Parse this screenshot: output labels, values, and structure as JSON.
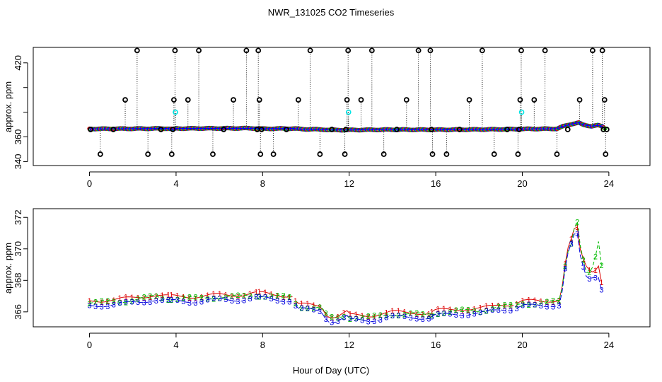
{
  "title": "NWR_131025  CO2 Timeseries",
  "xlabel": "Hour of Day (UTC)",
  "colors": {
    "series1": "#dd0000",
    "series2": "#00bb00",
    "series3": "#0000dd",
    "flagged_black": "#000000",
    "flagged_cyan": "#00e5e5",
    "series_line": "#0000ff"
  },
  "chart_data": [
    {
      "id": "top",
      "type": "scatter",
      "ylabel": "approx. ppm",
      "xlim": [
        -2.6,
        25.9
      ],
      "ylim": [
        336.8,
        432.5
      ],
      "xticks": [
        0,
        4,
        8,
        12,
        16,
        20,
        24
      ],
      "yticks": [
        340,
        360,
        380,
        400,
        420
      ],
      "ytick_labels": [
        "340",
        "360",
        "",
        "",
        "420"
      ],
      "baseline": [
        [
          0,
          366.5
        ],
        [
          3.6,
          366.8
        ],
        [
          3.9,
          366.2
        ],
        [
          4.0,
          366.8
        ],
        [
          7.5,
          367
        ],
        [
          8,
          366.6
        ],
        [
          9.4,
          366.8
        ],
        [
          9.8,
          366.3
        ],
        [
          10.8,
          366
        ],
        [
          11.1,
          365.6
        ],
        [
          12,
          365.6
        ],
        [
          14,
          365.9
        ],
        [
          16,
          365.8
        ],
        [
          18,
          366
        ],
        [
          19.8,
          366.3
        ],
        [
          20,
          366.4
        ],
        [
          21.6,
          366.6
        ],
        [
          21.9,
          368.6
        ],
        [
          22.3,
          370.5
        ],
        [
          22.6,
          371.5
        ],
        [
          22.8,
          369.8
        ],
        [
          23.2,
          368.7
        ],
        [
          23.5,
          369.4
        ],
        [
          23.7,
          368.4
        ],
        [
          23.85,
          366.5
        ]
      ],
      "flagged_black": [
        [
          0.05,
          366
        ],
        [
          0.5,
          346
        ],
        [
          1.1,
          366
        ],
        [
          1.65,
          390
        ],
        [
          2.2,
          430
        ],
        [
          2.7,
          346
        ],
        [
          3.3,
          366
        ],
        [
          3.8,
          346
        ],
        [
          3.85,
          366
        ],
        [
          3.9,
          390
        ],
        [
          3.95,
          430
        ],
        [
          4.55,
          390
        ],
        [
          5.05,
          430
        ],
        [
          5.7,
          346
        ],
        [
          6.2,
          366
        ],
        [
          6.65,
          390
        ],
        [
          7.25,
          430
        ],
        [
          7.75,
          366
        ],
        [
          7.8,
          430
        ],
        [
          7.85,
          390
        ],
        [
          7.9,
          346
        ],
        [
          7.95,
          366
        ],
        [
          8.5,
          346
        ],
        [
          9.1,
          366
        ],
        [
          9.65,
          390
        ],
        [
          10.2,
          430
        ],
        [
          10.65,
          346
        ],
        [
          11.2,
          366
        ],
        [
          11.8,
          346
        ],
        [
          11.85,
          366
        ],
        [
          11.9,
          390
        ],
        [
          11.95,
          430
        ],
        [
          12.55,
          390
        ],
        [
          13.05,
          430
        ],
        [
          13.6,
          346
        ],
        [
          14.2,
          366
        ],
        [
          14.65,
          390
        ],
        [
          15.2,
          430
        ],
        [
          15.75,
          430
        ],
        [
          15.8,
          366
        ],
        [
          15.85,
          346
        ],
        [
          16.5,
          346
        ],
        [
          17.1,
          366
        ],
        [
          17.55,
          390
        ],
        [
          18.15,
          430
        ],
        [
          18.7,
          346
        ],
        [
          19.3,
          366
        ],
        [
          19.8,
          346
        ],
        [
          19.85,
          366
        ],
        [
          19.9,
          390
        ],
        [
          19.95,
          430
        ],
        [
          20.55,
          390
        ],
        [
          21.05,
          430
        ],
        [
          21.6,
          346
        ],
        [
          22.1,
          366
        ],
        [
          22.65,
          390
        ],
        [
          23.25,
          430
        ],
        [
          23.7,
          430
        ],
        [
          23.75,
          366
        ],
        [
          23.8,
          390
        ],
        [
          23.85,
          346
        ],
        [
          23.9,
          366
        ]
      ],
      "flagged_cyan": [
        [
          3.97,
          380
        ],
        [
          11.97,
          380
        ],
        [
          19.97,
          380
        ]
      ]
    },
    {
      "id": "bottom",
      "type": "line",
      "ylabel": "approx. ppm",
      "xlim": [
        -2.6,
        25.9
      ],
      "ylim": [
        365.05,
        372.55
      ],
      "xticks": [
        0,
        4,
        8,
        12,
        16,
        20,
        24
      ],
      "yticks": [
        366,
        368,
        370,
        372
      ],
      "gaps": [
        3.7,
        7.7,
        9.5,
        15.8,
        19.7
      ],
      "series": [
        {
          "name": "1",
          "offset": 0.18,
          "points": [
            [
              0,
              366.5
            ],
            [
              1.2,
              366.6
            ],
            [
              2,
              366.7
            ],
            [
              3,
              366.9
            ],
            [
              3.6,
              366.8
            ],
            [
              4,
              366.8
            ],
            [
              5,
              366.8
            ],
            [
              6,
              366.9
            ],
            [
              7,
              366.9
            ],
            [
              7.6,
              367
            ],
            [
              8,
              367
            ],
            [
              8.8,
              366.9
            ],
            [
              9.4,
              366.8
            ],
            [
              9.6,
              366.3
            ],
            [
              10.7,
              366.2
            ],
            [
              11,
              365.6
            ],
            [
              11.4,
              365.5
            ],
            [
              11.9,
              365.8
            ],
            [
              12,
              365.6
            ],
            [
              13,
              365.6
            ],
            [
              14,
              365.8
            ],
            [
              15,
              365.8
            ],
            [
              15.7,
              365.7
            ],
            [
              16,
              365.9
            ],
            [
              17,
              366
            ],
            [
              18,
              366
            ],
            [
              19,
              366.3
            ],
            [
              19.6,
              366.3
            ],
            [
              20,
              366.5
            ],
            [
              21,
              366.5
            ],
            [
              21.7,
              366.6
            ],
            [
              21.85,
              367.5
            ],
            [
              22.05,
              369.6
            ],
            [
              22.3,
              370.5
            ],
            [
              22.5,
              371.5
            ],
            [
              22.7,
              369.5
            ],
            [
              23,
              368.6
            ],
            [
              23.3,
              368.4
            ],
            [
              23.55,
              368.9
            ],
            [
              23.75,
              366.9
            ]
          ]
        },
        {
          "name": "2",
          "offset": 0.06,
          "points": [
            [
              0,
              366.5
            ],
            [
              1.2,
              366.6
            ],
            [
              2,
              366.7
            ],
            [
              3,
              366.9
            ],
            [
              3.6,
              366.8
            ],
            [
              4,
              366.8
            ],
            [
              5,
              366.8
            ],
            [
              6,
              366.9
            ],
            [
              7,
              366.9
            ],
            [
              7.6,
              367
            ],
            [
              8,
              367
            ],
            [
              8.8,
              366.9
            ],
            [
              9.4,
              366.8
            ],
            [
              9.6,
              366.3
            ],
            [
              10.7,
              366.2
            ],
            [
              11,
              365.6
            ],
            [
              11.4,
              365.5
            ],
            [
              11.9,
              365.8
            ],
            [
              12,
              365.6
            ],
            [
              13,
              365.6
            ],
            [
              14,
              365.8
            ],
            [
              15,
              365.8
            ],
            [
              15.7,
              365.7
            ],
            [
              16,
              365.9
            ],
            [
              17,
              366
            ],
            [
              18,
              366
            ],
            [
              19,
              366.3
            ],
            [
              19.6,
              366.3
            ],
            [
              20,
              366.5
            ],
            [
              21,
              366.5
            ],
            [
              21.7,
              366.6
            ],
            [
              21.85,
              367.5
            ],
            [
              22.05,
              369.6
            ],
            [
              22.3,
              370.5
            ],
            [
              22.5,
              372.2
            ],
            [
              22.7,
              370
            ],
            [
              23,
              368.2
            ],
            [
              23.3,
              368.8
            ],
            [
              23.55,
              370.5
            ],
            [
              23.75,
              367.4
            ]
          ]
        },
        {
          "name": "3",
          "offset": -0.12,
          "points": [
            [
              0,
              366.5
            ],
            [
              1.2,
              366.6
            ],
            [
              2,
              366.7
            ],
            [
              3,
              366.9
            ],
            [
              3.6,
              366.8
            ],
            [
              4,
              366.8
            ],
            [
              5,
              366.8
            ],
            [
              6,
              366.9
            ],
            [
              7,
              366.9
            ],
            [
              7.6,
              367
            ],
            [
              8,
              367
            ],
            [
              8.8,
              366.9
            ],
            [
              9.4,
              366.8
            ],
            [
              9.6,
              366.3
            ],
            [
              10.7,
              366.2
            ],
            [
              11,
              365.6
            ],
            [
              11.4,
              365.5
            ],
            [
              11.9,
              365.8
            ],
            [
              12,
              365.6
            ],
            [
              13,
              365.6
            ],
            [
              14,
              365.8
            ],
            [
              15,
              365.8
            ],
            [
              15.7,
              365.7
            ],
            [
              16,
              365.9
            ],
            [
              17,
              366
            ],
            [
              18,
              366
            ],
            [
              19,
              366.3
            ],
            [
              19.6,
              366.3
            ],
            [
              20,
              366.5
            ],
            [
              21,
              366.5
            ],
            [
              21.7,
              366.6
            ],
            [
              21.85,
              367.5
            ],
            [
              22.05,
              369.6
            ],
            [
              22.3,
              370.5
            ],
            [
              22.5,
              371.4
            ],
            [
              22.7,
              369.4
            ],
            [
              23,
              368.2
            ],
            [
              23.3,
              368.4
            ],
            [
              23.55,
              368.4
            ],
            [
              23.75,
              367
            ]
          ]
        }
      ]
    }
  ]
}
